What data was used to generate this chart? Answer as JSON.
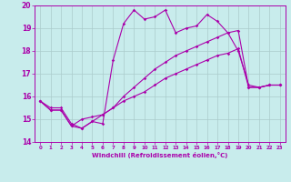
{
  "xlabel": "Windchill (Refroidissement éolien,°C)",
  "xlim": [
    -0.5,
    23.5
  ],
  "ylim": [
    14,
    20
  ],
  "yticks": [
    14,
    15,
    16,
    17,
    18,
    19,
    20
  ],
  "xticks": [
    0,
    1,
    2,
    3,
    4,
    5,
    6,
    7,
    8,
    9,
    10,
    11,
    12,
    13,
    14,
    15,
    16,
    17,
    18,
    19,
    20,
    21,
    22,
    23
  ],
  "bg_color": "#c8ecec",
  "line_color": "#aa00aa",
  "grid_color": "#aacccc",
  "series1_y": [
    15.8,
    15.5,
    15.5,
    14.8,
    14.6,
    14.9,
    14.8,
    17.6,
    19.2,
    19.8,
    19.4,
    19.5,
    19.8,
    18.8,
    19.0,
    19.1,
    19.6,
    19.3,
    18.8,
    18.0,
    16.5,
    16.4,
    16.5,
    16.5
  ],
  "series2_y": [
    15.8,
    15.4,
    15.4,
    14.7,
    14.6,
    14.9,
    15.2,
    15.5,
    15.8,
    16.0,
    16.2,
    16.5,
    16.8,
    17.0,
    17.2,
    17.4,
    17.6,
    17.8,
    17.9,
    18.1,
    16.4,
    16.4,
    16.5,
    16.5
  ],
  "series3_y": [
    15.8,
    15.4,
    15.4,
    14.7,
    15.0,
    15.1,
    15.2,
    15.5,
    16.0,
    16.4,
    16.8,
    17.2,
    17.5,
    17.8,
    18.0,
    18.2,
    18.4,
    18.6,
    18.8,
    18.9,
    16.4,
    16.4,
    16.5,
    16.5
  ]
}
